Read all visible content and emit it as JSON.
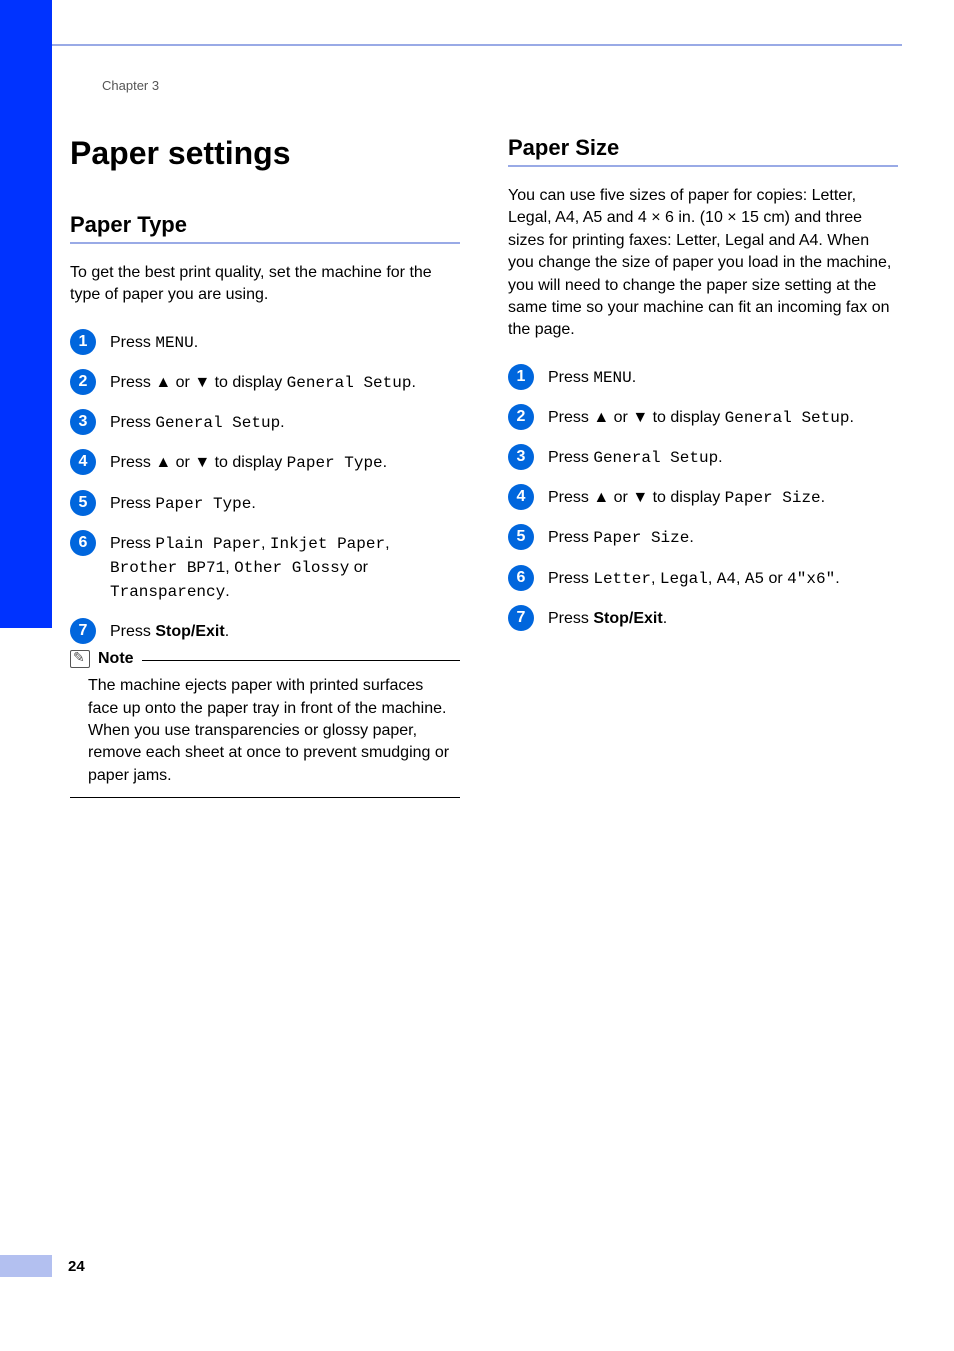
{
  "chapter": "Chapter 3",
  "page_number": "24",
  "colors": {
    "sidebar": "#0033ff",
    "rule": "#99aae6",
    "circle": "#0066dd",
    "footer_band": "#b3c0f0"
  },
  "left": {
    "h1": "Paper settings",
    "h2": "Paper Type",
    "intro": "To get the best print quality, set the machine for the type of paper you are using.",
    "steps": [
      {
        "n": "1",
        "segments": [
          {
            "t": "Press ",
            "c": ""
          },
          {
            "t": "MENU",
            "c": "mono"
          },
          {
            "t": ".",
            "c": ""
          }
        ]
      },
      {
        "n": "2",
        "segments": [
          {
            "t": "Press ",
            "c": ""
          },
          {
            "t": "▲",
            "c": "bold"
          },
          {
            "t": " or ",
            "c": ""
          },
          {
            "t": "▼",
            "c": "bold"
          },
          {
            "t": " to display ",
            "c": ""
          },
          {
            "t": "General Setup",
            "c": "mono"
          },
          {
            "t": ".",
            "c": ""
          }
        ]
      },
      {
        "n": "3",
        "segments": [
          {
            "t": "Press ",
            "c": ""
          },
          {
            "t": "General Setup",
            "c": "mono"
          },
          {
            "t": ".",
            "c": ""
          }
        ]
      },
      {
        "n": "4",
        "segments": [
          {
            "t": "Press ",
            "c": ""
          },
          {
            "t": "▲",
            "c": "bold"
          },
          {
            "t": " or ",
            "c": ""
          },
          {
            "t": "▼",
            "c": "bold"
          },
          {
            "t": " to display ",
            "c": ""
          },
          {
            "t": "Paper Type",
            "c": "mono"
          },
          {
            "t": ".",
            "c": ""
          }
        ]
      },
      {
        "n": "5",
        "segments": [
          {
            "t": "Press ",
            "c": ""
          },
          {
            "t": "Paper Type",
            "c": "mono"
          },
          {
            "t": ".",
            "c": ""
          }
        ]
      },
      {
        "n": "6",
        "segments": [
          {
            "t": "Press ",
            "c": ""
          },
          {
            "t": "Plain Paper",
            "c": "mono"
          },
          {
            "t": ", ",
            "c": ""
          },
          {
            "t": "Inkjet Paper",
            "c": "mono"
          },
          {
            "t": ", ",
            "c": ""
          },
          {
            "t": "Brother BP71",
            "c": "mono"
          },
          {
            "t": ", ",
            "c": ""
          },
          {
            "t": "Other Glossy",
            "c": "mono"
          },
          {
            "t": " or ",
            "c": ""
          },
          {
            "t": "Transparency",
            "c": "mono"
          },
          {
            "t": ".",
            "c": ""
          }
        ]
      },
      {
        "n": "7",
        "segments": [
          {
            "t": "Press ",
            "c": ""
          },
          {
            "t": "Stop/Exit",
            "c": "bold"
          },
          {
            "t": ".",
            "c": ""
          }
        ]
      }
    ],
    "note_title": "Note",
    "note_text": "The machine ejects paper with printed surfaces face up onto the paper tray in front of the machine. When you use transparencies or glossy paper, remove each sheet at once to prevent smudging or paper jams."
  },
  "right": {
    "h2": "Paper Size",
    "intro": "You can use five sizes of paper for copies: Letter, Legal, A4, A5 and 4 × 6 in. (10 × 15 cm) and three sizes for printing faxes: Letter, Legal and A4. When you change the size of paper you load in the machine, you will need to change the paper size setting at the same time so your machine can fit an incoming fax on the page.",
    "steps": [
      {
        "n": "1",
        "segments": [
          {
            "t": "Press ",
            "c": ""
          },
          {
            "t": "MENU",
            "c": "mono"
          },
          {
            "t": ".",
            "c": ""
          }
        ]
      },
      {
        "n": "2",
        "segments": [
          {
            "t": "Press ",
            "c": ""
          },
          {
            "t": "▲",
            "c": "bold"
          },
          {
            "t": " or ",
            "c": ""
          },
          {
            "t": "▼",
            "c": "bold"
          },
          {
            "t": " to display ",
            "c": ""
          },
          {
            "t": "General Setup",
            "c": "mono"
          },
          {
            "t": ".",
            "c": ""
          }
        ]
      },
      {
        "n": "3",
        "segments": [
          {
            "t": "Press ",
            "c": ""
          },
          {
            "t": "General Setup",
            "c": "mono"
          },
          {
            "t": ".",
            "c": ""
          }
        ]
      },
      {
        "n": "4",
        "segments": [
          {
            "t": "Press ",
            "c": ""
          },
          {
            "t": "▲",
            "c": "bold"
          },
          {
            "t": " or ",
            "c": ""
          },
          {
            "t": "▼",
            "c": "bold"
          },
          {
            "t": " to display ",
            "c": ""
          },
          {
            "t": "Paper Size",
            "c": "mono"
          },
          {
            "t": ".",
            "c": ""
          }
        ]
      },
      {
        "n": "5",
        "segments": [
          {
            "t": "Press ",
            "c": ""
          },
          {
            "t": "Paper Size",
            "c": "mono"
          },
          {
            "t": ".",
            "c": ""
          }
        ]
      },
      {
        "n": "6",
        "segments": [
          {
            "t": "Press ",
            "c": ""
          },
          {
            "t": "Letter",
            "c": "mono"
          },
          {
            "t": ", ",
            "c": ""
          },
          {
            "t": "Legal",
            "c": "mono"
          },
          {
            "t": ", ",
            "c": ""
          },
          {
            "t": "A4",
            "c": "mono"
          },
          {
            "t": ", ",
            "c": ""
          },
          {
            "t": "A5",
            "c": "mono"
          },
          {
            "t": " or ",
            "c": ""
          },
          {
            "t": "4\"x6\"",
            "c": "mono"
          },
          {
            "t": ".",
            "c": ""
          }
        ]
      },
      {
        "n": "7",
        "segments": [
          {
            "t": "Press ",
            "c": ""
          },
          {
            "t": "Stop/Exit",
            "c": "bold"
          },
          {
            "t": ".",
            "c": ""
          }
        ]
      }
    ]
  }
}
